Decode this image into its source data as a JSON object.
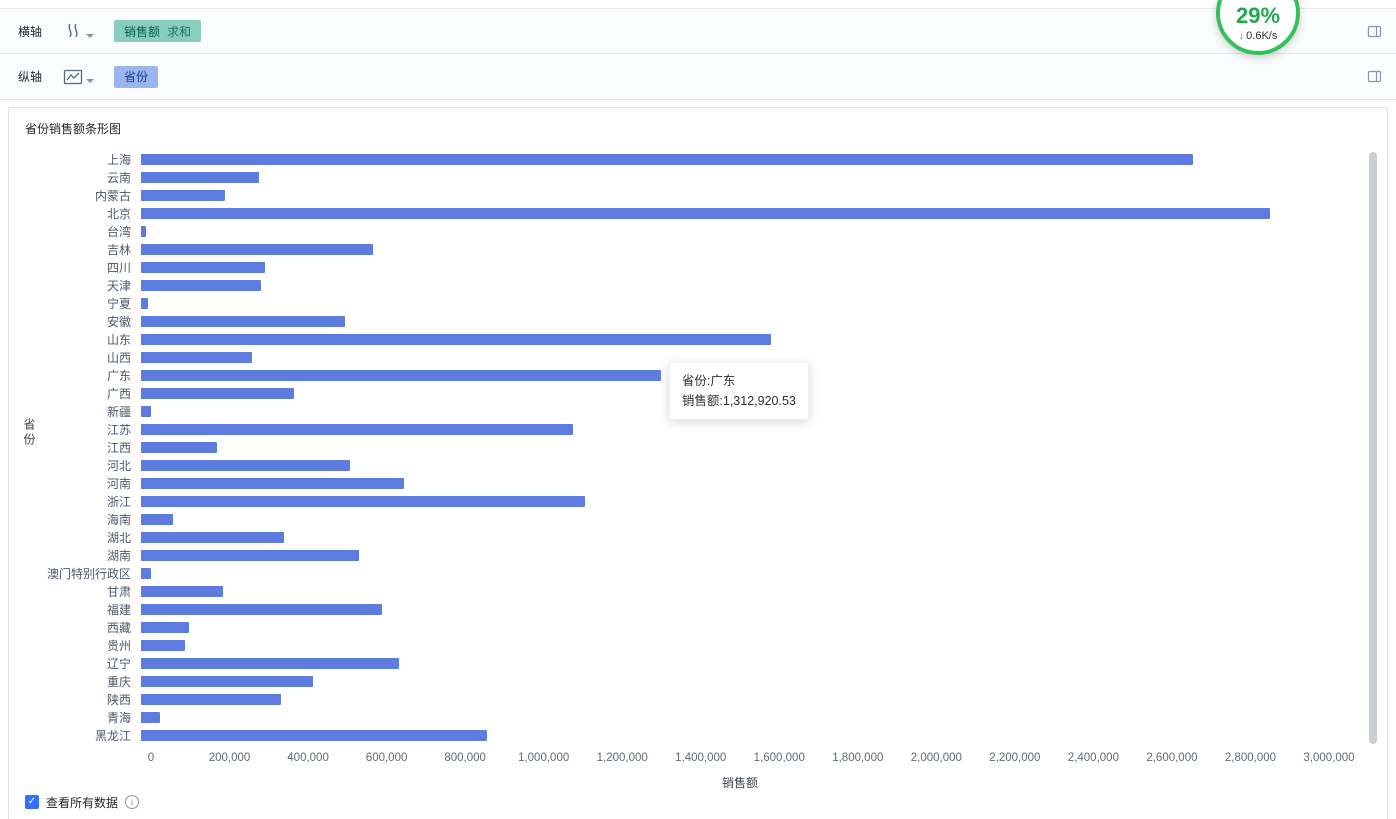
{
  "colors": {
    "bar": "#5e7ce0",
    "measure_pill": "#87cebf",
    "dimension_pill": "#9bb6ee",
    "accent_green": "#34c15a",
    "checkbox_blue": "#3370ff"
  },
  "axis_panel": {
    "rows": [
      {
        "label": "横轴",
        "pills": [
          {
            "text": "销售额",
            "suffix": "求和"
          }
        ]
      },
      {
        "label": "纵轴",
        "pills": [
          {
            "text": "省份",
            "suffix": ""
          }
        ]
      }
    ]
  },
  "speed_widget": {
    "percent": "29%",
    "arrow": "↓",
    "speed": "0.6K/s"
  },
  "panel": {
    "title": "省份销售额条形图"
  },
  "tooltip": {
    "category": "广东",
    "lines": [
      "省份:广东",
      "销售额:1,312,920.53"
    ]
  },
  "footer": {
    "label": "查看所有数据"
  },
  "chart_data": {
    "type": "bar",
    "orientation": "horizontal",
    "title": "省份销售额条形图",
    "xlabel": "销售额",
    "ylabel": "省份",
    "xlim": [
      0,
      3000000
    ],
    "xticks": [
      0,
      200000,
      400000,
      600000,
      800000,
      1000000,
      1200000,
      1400000,
      1600000,
      1800000,
      2000000,
      2200000,
      2400000,
      2600000,
      2800000,
      3000000
    ],
    "grid": false,
    "bar_color": "#5e7ce0",
    "categories": [
      "上海",
      "云南",
      "内蒙古",
      "北京",
      "台湾",
      "吉林",
      "四川",
      "天津",
      "宁夏",
      "安徽",
      "山东",
      "山西",
      "广东",
      "广西",
      "新疆",
      "江苏",
      "江西",
      "河北",
      "河南",
      "浙江",
      "海南",
      "湖北",
      "湖南",
      "澳门特别行政区",
      "甘肃",
      "福建",
      "西藏",
      "贵州",
      "辽宁",
      "重庆",
      "陕西",
      "青海",
      "黑龙江"
    ],
    "values": [
      2656000,
      297000,
      211000,
      2852000,
      12000,
      585000,
      313000,
      303000,
      18000,
      514000,
      1592000,
      280000,
      1312920.53,
      387000,
      25000,
      1092000,
      193000,
      527000,
      664000,
      1122000,
      81000,
      361000,
      550000,
      25000,
      206000,
      608000,
      120000,
      112000,
      651000,
      435000,
      354000,
      48000,
      873000
    ]
  }
}
